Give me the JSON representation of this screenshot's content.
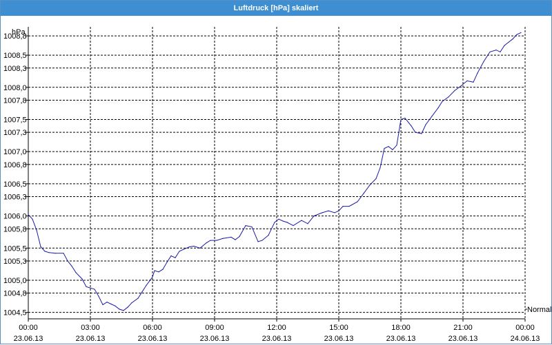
{
  "window": {
    "title": "Luftdruck [hPa] skaliert"
  },
  "colors": {
    "titlebar": "#3d8fd1",
    "series": "#1a1aa6",
    "grid": "#000000",
    "background": "#ffffff"
  },
  "chart_data": {
    "type": "line",
    "title": "Luftdruck [hPa] skaliert",
    "ylabel": "hPa",
    "xlabel": "",
    "ylim": [
      1004.4,
      1008.94
    ],
    "xlim": [
      0,
      24
    ],
    "grid": true,
    "y_ticks": [
      {
        "v": 1004.5,
        "label": "1004,5"
      },
      {
        "v": 1004.8,
        "label": "1004,8"
      },
      {
        "v": 1005.0,
        "label": "1005,0"
      },
      {
        "v": 1005.3,
        "label": "1005,3"
      },
      {
        "v": 1005.5,
        "label": "1005,5"
      },
      {
        "v": 1005.8,
        "label": "1005,8"
      },
      {
        "v": 1006.0,
        "label": "1006,0"
      },
      {
        "v": 1006.3,
        "label": "1006,3"
      },
      {
        "v": 1006.5,
        "label": "1006,5"
      },
      {
        "v": 1006.8,
        "label": "1006,8"
      },
      {
        "v": 1007.0,
        "label": "1007,0"
      },
      {
        "v": 1007.3,
        "label": "1007,3"
      },
      {
        "v": 1007.5,
        "label": "1007,5"
      },
      {
        "v": 1007.8,
        "label": "1007,8"
      },
      {
        "v": 1008.0,
        "label": "1008,0"
      },
      {
        "v": 1008.3,
        "label": "1008,3"
      },
      {
        "v": 1008.5,
        "label": "1008,5"
      },
      {
        "v": 1008.8,
        "label": "1008,8"
      }
    ],
    "x_ticks": [
      {
        "v": 0,
        "time": "00:00",
        "date": "23.06.13"
      },
      {
        "v": 3,
        "time": "03:00",
        "date": "23.06.13"
      },
      {
        "v": 6,
        "time": "06:00",
        "date": "23.06.13"
      },
      {
        "v": 9,
        "time": "09:00",
        "date": "23.06.13"
      },
      {
        "v": 12,
        "time": "12:00",
        "date": "23.06.13"
      },
      {
        "v": 15,
        "time": "15:00",
        "date": "23.06.13"
      },
      {
        "v": 18,
        "time": "18:00",
        "date": "23.06.13"
      },
      {
        "v": 21,
        "time": "21:00",
        "date": "23.06.13"
      },
      {
        "v": 24,
        "time": "00:00",
        "date": "24.06.13"
      }
    ],
    "annotation": {
      "label": "Normal",
      "y": 1004.55
    },
    "series": [
      {
        "x": [
          0.0,
          0.2,
          0.4,
          0.6,
          0.8,
          1.0,
          1.3,
          1.7,
          1.9,
          2.1,
          2.3,
          2.6,
          2.8,
          3.0,
          3.2,
          3.4,
          3.6,
          3.8,
          4.0,
          4.2,
          4.4,
          4.6,
          4.8,
          5.0,
          5.3,
          5.5,
          5.7,
          6.0,
          6.1,
          6.3,
          6.5,
          6.7,
          6.9,
          7.1,
          7.3,
          7.5,
          7.8,
          8.0,
          8.3,
          8.6,
          8.8,
          9.1,
          9.4,
          9.8,
          10.0,
          10.2,
          10.5,
          10.8,
          11.1,
          11.3,
          11.6,
          11.9,
          12.1,
          12.3,
          12.5,
          12.8,
          13.2,
          13.5,
          13.8,
          14.2,
          14.5,
          14.8,
          15.0,
          15.2,
          15.5,
          15.9,
          16.2,
          16.5,
          16.8,
          17.0,
          17.2,
          17.4,
          17.6,
          17.8,
          18.0,
          18.2,
          18.5,
          18.7,
          19.0,
          19.2,
          19.5,
          19.8,
          20.0,
          20.3,
          20.6,
          20.9,
          21.2,
          21.5,
          21.7,
          22.0,
          22.3,
          22.6,
          22.8,
          23.0,
          23.2,
          23.4,
          23.6,
          23.8
        ],
        "values": [
          1006.02,
          1005.95,
          1005.78,
          1005.52,
          1005.45,
          1005.43,
          1005.42,
          1005.42,
          1005.3,
          1005.22,
          1005.12,
          1005.02,
          1004.9,
          1004.88,
          1004.86,
          1004.75,
          1004.62,
          1004.66,
          1004.63,
          1004.6,
          1004.55,
          1004.53,
          1004.58,
          1004.65,
          1004.72,
          1004.82,
          1004.92,
          1005.05,
          1005.15,
          1005.13,
          1005.17,
          1005.28,
          1005.38,
          1005.35,
          1005.45,
          1005.48,
          1005.52,
          1005.53,
          1005.5,
          1005.58,
          1005.62,
          1005.62,
          1005.65,
          1005.67,
          1005.63,
          1005.68,
          1005.85,
          1005.83,
          1005.6,
          1005.62,
          1005.7,
          1005.9,
          1005.95,
          1005.92,
          1005.9,
          1005.85,
          1005.93,
          1005.88,
          1006.0,
          1006.05,
          1006.08,
          1006.05,
          1006.08,
          1006.15,
          1006.15,
          1006.22,
          1006.35,
          1006.48,
          1006.58,
          1006.75,
          1007.05,
          1007.08,
          1007.03,
          1007.1,
          1007.5,
          1007.52,
          1007.4,
          1007.3,
          1007.28,
          1007.42,
          1007.55,
          1007.68,
          1007.78,
          1007.85,
          1007.95,
          1008.02,
          1008.1,
          1008.08,
          1008.22,
          1008.4,
          1008.55,
          1008.58,
          1008.55,
          1008.65,
          1008.7,
          1008.75,
          1008.82,
          1008.85
        ]
      }
    ]
  }
}
